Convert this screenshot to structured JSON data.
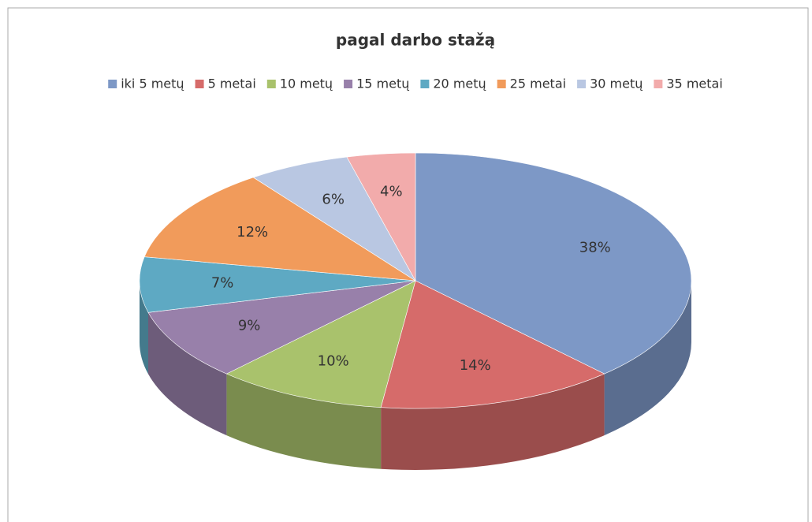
{
  "chart_data": {
    "type": "pie3d",
    "title": "pagal darbo stažą",
    "categories": [
      "iki 5 metų",
      "5 metai",
      "10 metų",
      "15 metų",
      "20 metų",
      "25 metai",
      "30 metų",
      "35 metai"
    ],
    "values": [
      38,
      14,
      10,
      9,
      7,
      12,
      6,
      4
    ],
    "value_labels": [
      "38%",
      "14%",
      "10%",
      "9%",
      "7%",
      "12%",
      "6%",
      "4%"
    ],
    "colors": [
      "#7d98c6",
      "#d66b6a",
      "#a9c26c",
      "#9880aa",
      "#5ea9c3",
      "#f19b5b",
      "#b9c7e2",
      "#f2abab"
    ],
    "legend": "top"
  }
}
